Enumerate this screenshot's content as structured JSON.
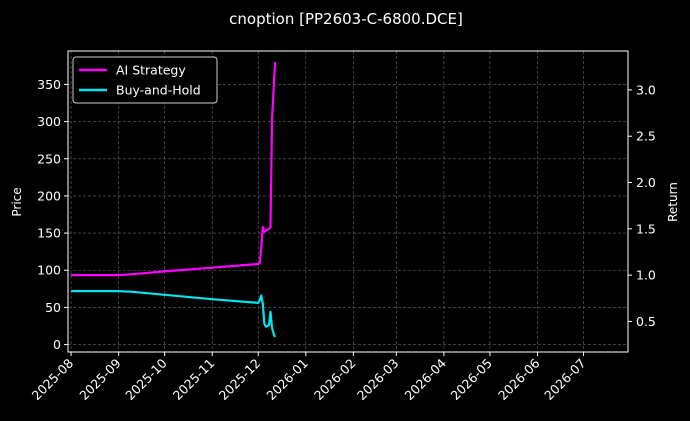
{
  "chart_data": {
    "type": "line",
    "title": "cnoption [PP2603-C-6800.DCE]",
    "xlabel": "",
    "ylabel": "Price",
    "ylabel_right": "Return",
    "x_ticks": [
      "2025-08",
      "2025-09",
      "2025-10",
      "2025-11",
      "2025-12",
      "2026-01",
      "2026-02",
      "2026-03",
      "2026-04",
      "2026-05",
      "2026-06",
      "2026-07"
    ],
    "y_ticks": [
      0,
      50,
      100,
      150,
      200,
      250,
      300,
      350
    ],
    "y_right_ticks": [
      "0.5",
      "1.0",
      "1.5",
      "2.0",
      "2.5",
      "3.0"
    ],
    "xlim": [
      "2025-07-30",
      "2026-07-30"
    ],
    "ylim": [
      -10,
      395
    ],
    "y_right_lim": [
      0.17,
      3.42
    ],
    "grid": true,
    "legend_position": "top-left",
    "series": [
      {
        "name": "AI Strategy",
        "axis": "right",
        "color": "#ff00ff",
        "points": [
          [
            "2025-08-01",
            1.0
          ],
          [
            "2025-09-01",
            1.0
          ],
          [
            "2025-09-10",
            1.01
          ],
          [
            "2025-10-01",
            1.04
          ],
          [
            "2025-11-01",
            1.08
          ],
          [
            "2025-12-01",
            1.12
          ],
          [
            "2025-12-02",
            1.13
          ],
          [
            "2025-12-03",
            1.3
          ],
          [
            "2025-12-04",
            1.52
          ],
          [
            "2025-12-05",
            1.47
          ],
          [
            "2025-12-06",
            1.48
          ],
          [
            "2025-12-08",
            1.5
          ],
          [
            "2025-12-09",
            1.52
          ],
          [
            "2025-12-10",
            2.7
          ],
          [
            "2025-12-11",
            3.0
          ],
          [
            "2025-12-12",
            3.3
          ]
        ]
      },
      {
        "name": "Buy-and-Hold",
        "axis": "left",
        "color": "#00e5ee",
        "points": [
          [
            "2025-08-01",
            72
          ],
          [
            "2025-09-01",
            72
          ],
          [
            "2025-09-10",
            71
          ],
          [
            "2025-10-01",
            67
          ],
          [
            "2025-11-01",
            61
          ],
          [
            "2025-12-01",
            56
          ],
          [
            "2025-12-02",
            60
          ],
          [
            "2025-12-03",
            66
          ],
          [
            "2025-12-04",
            55
          ],
          [
            "2025-12-05",
            28
          ],
          [
            "2025-12-06",
            24
          ],
          [
            "2025-12-07",
            25
          ],
          [
            "2025-12-08",
            26
          ],
          [
            "2025-12-09",
            44
          ],
          [
            "2025-12-10",
            22
          ],
          [
            "2025-12-11",
            15
          ],
          [
            "2025-12-12",
            10
          ]
        ]
      }
    ]
  }
}
